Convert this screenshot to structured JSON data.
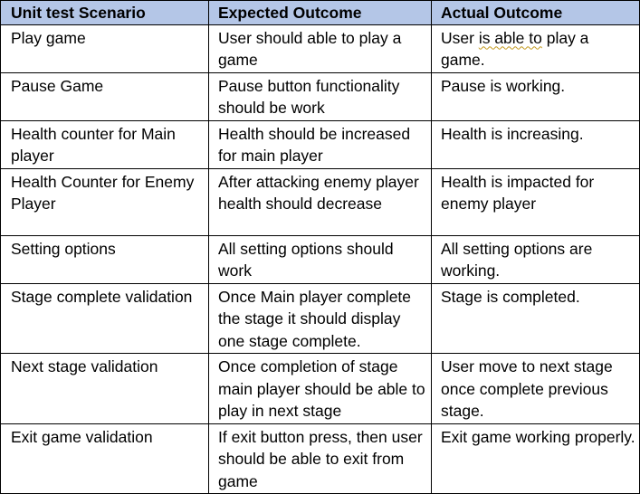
{
  "table": {
    "headers": [
      "Unit test Scenario",
      "Expected Outcome",
      "Actual Outcome"
    ],
    "rows": [
      {
        "scenario": "Play game",
        "expected": "User should able to play a game",
        "actual_prefix": "User ",
        "actual_flagged": "is able to",
        "actual_suffix": " play a game."
      },
      {
        "scenario": "Pause Game",
        "expected": "Pause button functionality should be work",
        "actual": "Pause is working."
      },
      {
        "scenario": "Health counter for Main player",
        "expected": "Health should be increased for main player",
        "actual": "Health is increasing."
      },
      {
        "scenario": "Health Counter for Enemy Player",
        "expected": "After attacking enemy player health should decrease",
        "actual": "Health is impacted for enemy player"
      },
      {
        "scenario": "Setting options",
        "expected": "All setting options should work",
        "actual": "All setting options are working."
      },
      {
        "scenario": "Stage complete validation",
        "expected": "Once Main player complete the stage it should display one stage complete.",
        "actual": "Stage is completed."
      },
      {
        "scenario": "Next stage validation",
        "expected": "Once completion of stage main player should be able to play in next stage",
        "actual": "User move to next stage once complete previous stage."
      },
      {
        "scenario": "Exit game validation",
        "expected": "If exit button press, then user should be able to exit from game",
        "actual": "Exit game working properly."
      }
    ]
  },
  "colors": {
    "header_background": "#b4c6e7",
    "border": "#000000",
    "spellcheck_underline": "#c49a20"
  }
}
